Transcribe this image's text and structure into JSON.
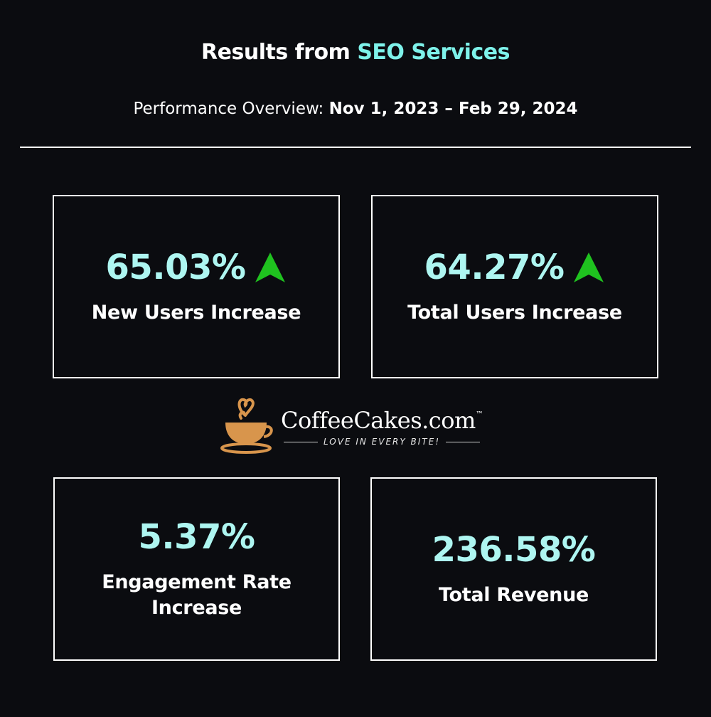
{
  "header": {
    "title_prefix": "Results from",
    "title_highlight": "SEO Services",
    "subtitle_label": "Performance Overview:",
    "date_range": "Nov 1, 2023 – Feb 29, 2024"
  },
  "cards": [
    {
      "value": "65.03%",
      "label": "New Users Increase"
    },
    {
      "value": "64.27%",
      "label": "Total Users Increase"
    },
    {
      "value": "5.37%",
      "label": "Engagement Rate Increase"
    },
    {
      "value": "236.58%",
      "label": "Total Revenue"
    }
  ],
  "logo": {
    "name": "CoffeeCakes.com",
    "trademark": "™",
    "tagline": "LOVE IN EVERY BITE!"
  }
}
